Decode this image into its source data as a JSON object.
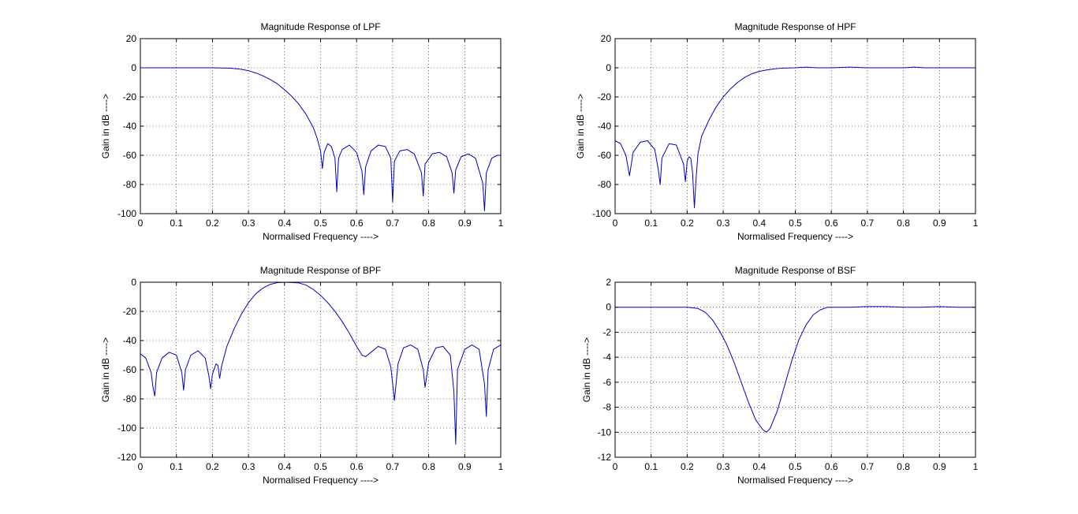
{
  "chart_data": [
    {
      "type": "line",
      "title": "Magnitude Response of LPF",
      "xlabel": "Normalised Frequency ---->",
      "ylabel": "Gain in dB ---->",
      "xlim": [
        0,
        1
      ],
      "ylim": [
        -100,
        20
      ],
      "xticks": [
        0,
        0.1,
        0.2,
        0.3,
        0.4,
        0.5,
        0.6,
        0.7,
        0.8,
        0.9,
        1
      ],
      "yticks": [
        -100,
        -80,
        -60,
        -40,
        -20,
        0,
        20
      ],
      "grid": true,
      "line_color": "#0000c8",
      "series": [
        {
          "x": [
            0,
            0.05,
            0.1,
            0.15,
            0.2,
            0.25,
            0.28,
            0.3,
            0.32,
            0.34,
            0.36,
            0.38,
            0.4,
            0.42,
            0.44,
            0.46,
            0.48,
            0.49,
            0.5,
            0.505,
            0.51,
            0.52,
            0.53,
            0.54,
            0.545,
            0.55,
            0.56,
            0.58,
            0.6,
            0.615,
            0.62,
            0.625,
            0.64,
            0.66,
            0.68,
            0.695,
            0.7,
            0.705,
            0.72,
            0.74,
            0.76,
            0.78,
            0.785,
            0.79,
            0.81,
            0.83,
            0.85,
            0.865,
            0.87,
            0.875,
            0.89,
            0.91,
            0.93,
            0.95,
            0.955,
            0.96,
            0.975,
            0.99,
            1
          ],
          "y": [
            0,
            0,
            0,
            0,
            0,
            -0.3,
            -1,
            -2,
            -3.5,
            -5.5,
            -8,
            -11,
            -15,
            -19.5,
            -25,
            -32,
            -41,
            -48,
            -57,
            -69,
            -58,
            -52,
            -54,
            -62,
            -85,
            -62,
            -56,
            -53,
            -58,
            -71,
            -87,
            -68,
            -57,
            -53,
            -54,
            -62,
            -92,
            -64,
            -57,
            -56,
            -59,
            -72,
            -88,
            -66,
            -59,
            -58,
            -61,
            -72,
            -86,
            -70,
            -61,
            -59,
            -62,
            -79,
            -98,
            -72,
            -62,
            -60,
            -60
          ]
        }
      ]
    },
    {
      "type": "line",
      "title": "Magnitude Response of HPF",
      "xlabel": "Normalised Frequency ---->",
      "ylabel": "Gain in dB ---->",
      "xlim": [
        0,
        1
      ],
      "ylim": [
        -100,
        20
      ],
      "xticks": [
        0,
        0.1,
        0.2,
        0.3,
        0.4,
        0.5,
        0.6,
        0.7,
        0.8,
        0.9,
        1
      ],
      "yticks": [
        -100,
        -80,
        -60,
        -40,
        -20,
        0,
        20
      ],
      "grid": true,
      "line_color": "#0000c8",
      "series": [
        {
          "x": [
            0,
            0.015,
            0.03,
            0.04,
            0.05,
            0.07,
            0.09,
            0.11,
            0.12,
            0.125,
            0.13,
            0.15,
            0.17,
            0.19,
            0.195,
            0.2,
            0.205,
            0.21,
            0.215,
            0.22,
            0.225,
            0.23,
            0.24,
            0.26,
            0.28,
            0.3,
            0.32,
            0.34,
            0.36,
            0.38,
            0.4,
            0.42,
            0.44,
            0.46,
            0.5,
            0.53,
            0.56,
            0.6,
            0.65,
            0.7,
            0.75,
            0.8,
            0.83,
            0.86,
            0.9,
            0.95,
            1
          ],
          "y": [
            -50,
            -52,
            -60,
            -74,
            -58,
            -51,
            -50,
            -56,
            -70,
            -80,
            -62,
            -52,
            -53,
            -66,
            -78,
            -64,
            -61,
            -62,
            -72,
            -96,
            -75,
            -59,
            -47,
            -36,
            -27,
            -20,
            -14.5,
            -10,
            -6.5,
            -4,
            -2.5,
            -1.5,
            -0.8,
            -0.3,
            0,
            0.5,
            0,
            0,
            0.5,
            0,
            0,
            0,
            0.5,
            0,
            0,
            0,
            0
          ]
        }
      ]
    },
    {
      "type": "line",
      "title": "Magnitude Response of BPF",
      "xlabel": "Normalised Frequency ---->",
      "ylabel": "Gain in dB ---->",
      "xlim": [
        0,
        1
      ],
      "ylim": [
        -120,
        0
      ],
      "xticks": [
        0,
        0.1,
        0.2,
        0.3,
        0.4,
        0.5,
        0.6,
        0.7,
        0.8,
        0.9,
        1
      ],
      "yticks": [
        -120,
        -100,
        -80,
        -60,
        -40,
        -20,
        0
      ],
      "grid": true,
      "line_color": "#0000c8",
      "series": [
        {
          "x": [
            0,
            0.015,
            0.03,
            0.035,
            0.04,
            0.045,
            0.06,
            0.08,
            0.1,
            0.115,
            0.12,
            0.125,
            0.14,
            0.16,
            0.18,
            0.19,
            0.195,
            0.2,
            0.21,
            0.215,
            0.22,
            0.225,
            0.24,
            0.26,
            0.28,
            0.3,
            0.32,
            0.34,
            0.36,
            0.38,
            0.4,
            0.42,
            0.44,
            0.46,
            0.48,
            0.5,
            0.52,
            0.54,
            0.56,
            0.58,
            0.6,
            0.615,
            0.625,
            0.64,
            0.66,
            0.68,
            0.695,
            0.705,
            0.715,
            0.73,
            0.75,
            0.77,
            0.785,
            0.79,
            0.8,
            0.82,
            0.84,
            0.86,
            0.87,
            0.875,
            0.88,
            0.9,
            0.92,
            0.94,
            0.955,
            0.96,
            0.965,
            0.98,
            1
          ],
          "y": [
            -49,
            -52,
            -62,
            -72,
            -78,
            -62,
            -52,
            -48,
            -50,
            -62,
            -74,
            -60,
            -50,
            -47,
            -52,
            -64,
            -73,
            -63,
            -56,
            -57,
            -66,
            -58,
            -44,
            -32,
            -22,
            -14,
            -8,
            -4,
            -1.5,
            -0.3,
            0,
            -0.2,
            -0.5,
            -2,
            -5,
            -9,
            -14,
            -20,
            -27,
            -35,
            -44,
            -50,
            -51,
            -48,
            -44,
            -46,
            -58,
            -81,
            -56,
            -45,
            -43,
            -46,
            -60,
            -72,
            -55,
            -45,
            -44,
            -50,
            -75,
            -111,
            -60,
            -46,
            -43,
            -46,
            -70,
            -92,
            -60,
            -46,
            -43
          ]
        }
      ]
    },
    {
      "type": "line",
      "title": "Magnitude Response of BSF",
      "xlabel": "Normalised Frequency ---->",
      "ylabel": "Gain in dB ---->",
      "xlim": [
        0,
        1
      ],
      "ylim": [
        -12,
        2
      ],
      "xticks": [
        0,
        0.1,
        0.2,
        0.3,
        0.4,
        0.5,
        0.6,
        0.7,
        0.8,
        0.9,
        1
      ],
      "yticks": [
        -12,
        -10,
        -8,
        -6,
        -4,
        -2,
        0,
        2
      ],
      "grid": true,
      "line_color": "#0000c8",
      "series": [
        {
          "x": [
            0,
            0.05,
            0.1,
            0.15,
            0.2,
            0.23,
            0.25,
            0.27,
            0.29,
            0.31,
            0.33,
            0.35,
            0.37,
            0.39,
            0.41,
            0.42,
            0.43,
            0.45,
            0.47,
            0.49,
            0.51,
            0.53,
            0.55,
            0.57,
            0.59,
            0.61,
            0.65,
            0.7,
            0.75,
            0.8,
            0.85,
            0.9,
            0.95,
            1
          ],
          "y": [
            0,
            0,
            0,
            0,
            0,
            -0.1,
            -0.4,
            -1,
            -1.9,
            -3,
            -4.4,
            -6,
            -7.6,
            -9,
            -9.8,
            -10,
            -9.7,
            -8.3,
            -6.3,
            -4.3,
            -2.6,
            -1.4,
            -0.6,
            -0.2,
            0,
            0,
            0,
            0.05,
            0.05,
            0,
            0,
            0.05,
            0,
            0
          ]
        }
      ]
    }
  ]
}
